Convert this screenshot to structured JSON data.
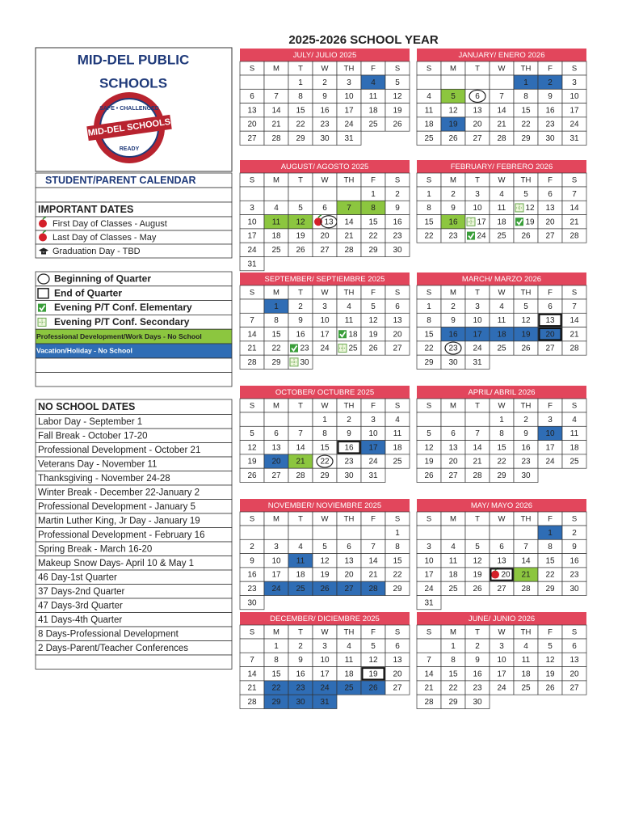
{
  "title": "2025-2026 SCHOOL YEAR",
  "district": {
    "line1": "MID-DEL PUBLIC",
    "line2": "SCHOOLS",
    "seal_top": "SAFE • CHALLENGED",
    "seal_middle": "MID-DEL SCHOOLS",
    "seal_bottom": "READY"
  },
  "calendar_heading": "STUDENT/PARENT CALENDAR",
  "important_dates": {
    "heading": "IMPORTANT DATES",
    "items": [
      {
        "label": "First Day of Classes - August",
        "symbol": "apple"
      },
      {
        "label": "Last Day of Classes - May",
        "symbol": "apple"
      },
      {
        "label": "Graduation Day -  TBD",
        "symbol": "cap"
      }
    ]
  },
  "legend": [
    {
      "label": "Beginning of Quarter",
      "symbol": "circle"
    },
    {
      "label": "End of Quarter",
      "symbol": "square"
    },
    {
      "label": "Evening P/T Conf. Elementary",
      "symbol": "check"
    },
    {
      "label": "Evening P/T Conf. Secondary",
      "symbol": "secondary"
    },
    {
      "label": "Professional Development/Work Days - No School",
      "symbol": "pd"
    },
    {
      "label": "Vacation/Holiday - No School",
      "symbol": "holiday"
    }
  ],
  "no_school": {
    "heading": "NO SCHOOL DATES",
    "items": [
      "Labor Day - September 1",
      "Fall Break - October 17-20",
      "Professional Development - October 21",
      "Veterans Day - November 11",
      "Thanksgiving - November 24-28",
      "Winter Break - December 22-January 2",
      "Professional Development - January 5",
      "Martin Luther King, Jr Day - January 19",
      "Professional Development - February 16",
      "Spring Break - March 16-20",
      "Makeup Snow Days- April 10 & May 1",
      "46 Day-1st Quarter",
      "37 Days-2nd Quarter",
      "47 Days-3rd Quarter",
      "41 Days-4th Quarter",
      "8 Days-Professional Development",
      "2 Days-Parent/Teacher Conferences"
    ]
  },
  "weekdays": [
    "S",
    "M",
    "T",
    "W",
    "TH",
    "F",
    "S"
  ],
  "months": [
    {
      "name": "JULY/ JULIO 2025",
      "weeks": [
        [
          null,
          null,
          1,
          2,
          3,
          {
            "day": 4,
            "marks": [
              "holiday"
            ]
          },
          5
        ],
        [
          6,
          7,
          8,
          9,
          10,
          11,
          12
        ],
        [
          13,
          14,
          15,
          16,
          17,
          18,
          19
        ],
        [
          20,
          21,
          22,
          23,
          24,
          25,
          26
        ],
        [
          27,
          28,
          29,
          30,
          31,
          null,
          null
        ]
      ]
    },
    {
      "name": "JANUARY/ ENERO 2026",
      "weeks": [
        [
          null,
          null,
          null,
          null,
          {
            "day": 1,
            "marks": [
              "holiday"
            ]
          },
          {
            "day": 2,
            "marks": [
              "holiday"
            ]
          },
          3
        ],
        [
          4,
          {
            "day": 5,
            "marks": [
              "pd"
            ]
          },
          {
            "day": 6,
            "marks": [
              "circle"
            ]
          },
          7,
          8,
          9,
          10
        ],
        [
          11,
          12,
          13,
          14,
          15,
          16,
          17
        ],
        [
          18,
          {
            "day": 19,
            "marks": [
              "holiday"
            ]
          },
          20,
          21,
          22,
          23,
          24
        ],
        [
          25,
          26,
          27,
          28,
          29,
          30,
          31
        ]
      ]
    },
    {
      "name": "AUGUST/ AGOSTO 2025",
      "weeks": [
        [
          null,
          null,
          null,
          null,
          null,
          1,
          2
        ],
        [
          3,
          4,
          5,
          6,
          {
            "day": 7,
            "marks": [
              "pd"
            ]
          },
          {
            "day": 8,
            "marks": [
              "pd"
            ]
          },
          9
        ],
        [
          10,
          {
            "day": 11,
            "marks": [
              "pd"
            ]
          },
          {
            "day": 12,
            "marks": [
              "pd"
            ]
          },
          {
            "day": 13,
            "marks": [
              "apple",
              "circle"
            ]
          },
          14,
          15,
          16
        ],
        [
          17,
          18,
          19,
          20,
          21,
          22,
          23
        ],
        [
          24,
          25,
          26,
          27,
          28,
          29,
          30
        ],
        [
          31,
          null,
          null,
          null,
          null,
          null,
          null
        ]
      ]
    },
    {
      "name": "FEBRUARY/ FEBRERO 2026",
      "weeks": [
        [
          1,
          2,
          3,
          4,
          5,
          6,
          7
        ],
        [
          8,
          9,
          10,
          11,
          {
            "day": 12,
            "marks": [
              "secondary"
            ]
          },
          13,
          14
        ],
        [
          15,
          {
            "day": 16,
            "marks": [
              "pd"
            ]
          },
          {
            "day": 17,
            "marks": [
              "secondary"
            ]
          },
          18,
          {
            "day": 19,
            "marks": [
              "check"
            ]
          },
          20,
          21
        ],
        [
          22,
          23,
          {
            "day": 24,
            "marks": [
              "check"
            ]
          },
          25,
          26,
          27,
          28
        ]
      ]
    },
    {
      "name": "SEPTEMBER/ SEPTIEMBRE 2025",
      "weeks": [
        [
          null,
          {
            "day": 1,
            "marks": [
              "holiday"
            ]
          },
          2,
          3,
          4,
          5,
          6
        ],
        [
          7,
          8,
          9,
          10,
          11,
          12,
          13
        ],
        [
          14,
          15,
          16,
          17,
          {
            "day": 18,
            "marks": [
              "check"
            ]
          },
          19,
          20
        ],
        [
          21,
          22,
          {
            "day": 23,
            "marks": [
              "check"
            ]
          },
          24,
          {
            "day": 25,
            "marks": [
              "secondary"
            ]
          },
          26,
          27
        ],
        [
          28,
          29,
          {
            "day": 30,
            "marks": [
              "secondary"
            ]
          },
          null,
          null,
          null,
          null
        ]
      ]
    },
    {
      "name": "MARCH/ MARZO 2026",
      "weeks": [
        [
          1,
          2,
          3,
          4,
          5,
          6,
          7
        ],
        [
          8,
          9,
          10,
          11,
          12,
          {
            "day": 13,
            "marks": [
              "square"
            ]
          },
          14
        ],
        [
          15,
          {
            "day": 16,
            "marks": [
              "holiday"
            ]
          },
          {
            "day": 17,
            "marks": [
              "holiday"
            ]
          },
          {
            "day": 18,
            "marks": [
              "holiday"
            ]
          },
          {
            "day": 19,
            "marks": [
              "holiday"
            ]
          },
          {
            "day": 20,
            "marks": [
              "holiday",
              "square"
            ]
          },
          21
        ],
        [
          22,
          {
            "day": 23,
            "marks": [
              "circle"
            ]
          },
          24,
          25,
          26,
          27,
          28
        ],
        [
          29,
          30,
          31,
          null,
          null,
          null,
          null
        ]
      ]
    },
    {
      "name": "OCTOBER/ OCTUBRE 2025",
      "weeks": [
        [
          null,
          null,
          null,
          1,
          2,
          3,
          4
        ],
        [
          5,
          6,
          7,
          8,
          9,
          10,
          11
        ],
        [
          12,
          13,
          14,
          15,
          {
            "day": 16,
            "marks": [
              "square"
            ]
          },
          {
            "day": 17,
            "marks": [
              "holiday"
            ]
          },
          18
        ],
        [
          19,
          {
            "day": 20,
            "marks": [
              "holiday"
            ]
          },
          {
            "day": 21,
            "marks": [
              "pd"
            ]
          },
          {
            "day": 22,
            "marks": [
              "circle"
            ]
          },
          23,
          24,
          25
        ],
        [
          26,
          27,
          28,
          29,
          30,
          31,
          null
        ]
      ]
    },
    {
      "name": "APRIL/ ABRIL 2026",
      "weeks": [
        [
          null,
          null,
          null,
          1,
          2,
          3,
          4
        ],
        [
          5,
          6,
          7,
          8,
          9,
          {
            "day": 10,
            "marks": [
              "holiday"
            ]
          },
          11
        ],
        [
          12,
          13,
          14,
          15,
          16,
          17,
          18
        ],
        [
          19,
          20,
          21,
          22,
          23,
          24,
          25
        ],
        [
          26,
          27,
          28,
          29,
          30,
          null,
          null
        ]
      ]
    },
    {
      "name": "NOVEMBER/ NOVIEMBRE 2025",
      "weeks": [
        [
          null,
          null,
          null,
          null,
          null,
          null,
          1
        ],
        [
          2,
          3,
          4,
          5,
          6,
          7,
          8
        ],
        [
          9,
          10,
          {
            "day": 11,
            "marks": [
              "holiday"
            ]
          },
          12,
          13,
          14,
          15
        ],
        [
          16,
          17,
          18,
          19,
          20,
          21,
          22
        ],
        [
          23,
          {
            "day": 24,
            "marks": [
              "holiday"
            ]
          },
          {
            "day": 25,
            "marks": [
              "holiday"
            ]
          },
          {
            "day": 26,
            "marks": [
              "holiday"
            ]
          },
          {
            "day": 27,
            "marks": [
              "holiday"
            ]
          },
          {
            "day": 28,
            "marks": [
              "holiday"
            ]
          },
          29
        ],
        [
          30,
          null,
          null,
          null,
          null,
          null,
          null
        ]
      ]
    },
    {
      "name": "MAY/ MAYO 2026",
      "weeks": [
        [
          null,
          null,
          null,
          null,
          null,
          {
            "day": 1,
            "marks": [
              "holiday"
            ]
          },
          2
        ],
        [
          3,
          4,
          5,
          6,
          7,
          8,
          9
        ],
        [
          10,
          11,
          12,
          13,
          14,
          15,
          16
        ],
        [
          17,
          18,
          19,
          {
            "day": 20,
            "marks": [
              "apple",
              "square"
            ]
          },
          {
            "day": 21,
            "marks": [
              "pd"
            ]
          },
          22,
          23
        ],
        [
          24,
          25,
          26,
          27,
          28,
          29,
          30
        ],
        [
          31,
          null,
          null,
          null,
          null,
          null,
          null
        ]
      ]
    },
    {
      "name": "DECEMBER/ DICIEMBRE 2025",
      "weeks": [
        [
          null,
          1,
          2,
          3,
          4,
          5,
          6
        ],
        [
          7,
          8,
          9,
          10,
          11,
          12,
          13
        ],
        [
          14,
          15,
          16,
          17,
          18,
          {
            "day": 19,
            "marks": [
              "square"
            ]
          },
          20
        ],
        [
          21,
          {
            "day": 22,
            "marks": [
              "holiday"
            ]
          },
          {
            "day": 23,
            "marks": [
              "holiday"
            ]
          },
          {
            "day": 24,
            "marks": [
              "holiday"
            ]
          },
          {
            "day": 25,
            "marks": [
              "holiday"
            ]
          },
          {
            "day": 26,
            "marks": [
              "holiday"
            ]
          },
          27
        ],
        [
          28,
          {
            "day": 29,
            "marks": [
              "holiday"
            ]
          },
          {
            "day": 30,
            "marks": [
              "holiday"
            ]
          },
          {
            "day": 31,
            "marks": [
              "holiday"
            ]
          },
          null,
          null,
          null
        ]
      ]
    },
    {
      "name": "JUNE/ JUNIO 2026",
      "weeks": [
        [
          null,
          1,
          2,
          3,
          4,
          5,
          6
        ],
        [
          7,
          8,
          9,
          10,
          11,
          12,
          13
        ],
        [
          14,
          15,
          16,
          17,
          18,
          19,
          20
        ],
        [
          21,
          22,
          23,
          24,
          25,
          26,
          27
        ],
        [
          28,
          29,
          30,
          null,
          null,
          null,
          null
        ]
      ]
    }
  ]
}
